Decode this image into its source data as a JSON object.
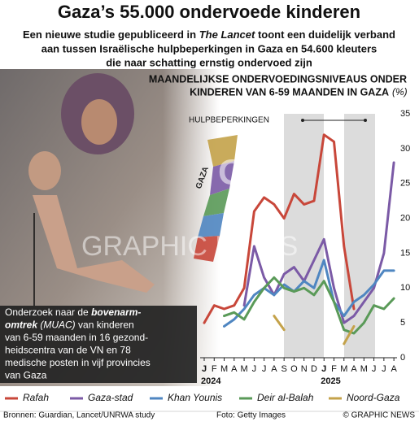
{
  "chart_data": {
    "type": "line",
    "title": "Gaza’s 55.000 ondervoede kinderen",
    "subtitle": {
      "line1": {
        "before": "Een nieuwe studie gepubliceerd in ",
        "italic": "The Lancet",
        "after": " toont een duidelijk verband"
      },
      "line2": "aan tussen Israëlische hulpbeperkingen in Gaza en 54.600 kleuters",
      "line3": "die naar schatting ernstig ondervoed zijn"
    },
    "chart_title": [
      "MAANDELIJKSE ONDERVOEDINGSNIVEAUS ONDER",
      "KINDEREN VAN 6-59 MAANDEN IN GAZA"
    ],
    "y_unit": "(%)",
    "annotation": "HULPBEPERKINGEN",
    "map_label": "GAZA",
    "watermark": [
      "GN",
      "GRAPHIC NEWS"
    ],
    "categories": [
      "J",
      "F",
      "M",
      "A",
      "M",
      "J",
      "J",
      "A",
      "S",
      "O",
      "N",
      "D",
      "J",
      "F",
      "M",
      "A",
      "M",
      "J",
      "J",
      "A"
    ],
    "year_labels": [
      "2024",
      null,
      null,
      null,
      null,
      null,
      null,
      null,
      null,
      null,
      null,
      null,
      "2025",
      null,
      null,
      null,
      null,
      null,
      null,
      null
    ],
    "ylim": [
      0,
      35
    ],
    "yticks": [
      0,
      5,
      10,
      15,
      20,
      25,
      30,
      35
    ],
    "grid": false,
    "series": [
      {
        "name": "Rafah",
        "color": "#c8473a",
        "values": [
          5,
          7.5,
          7,
          7.5,
          10,
          21,
          23,
          22,
          20,
          23.5,
          22,
          22.5,
          32,
          31,
          16,
          7,
          null,
          null,
          null,
          null
        ]
      },
      {
        "name": "Gaza-stad",
        "color": "#7b5aa6",
        "values": [
          null,
          null,
          null,
          null,
          7.5,
          16,
          11.5,
          9,
          12,
          13,
          11,
          14,
          17,
          10,
          5,
          6,
          8,
          10,
          15,
          28
        ]
      },
      {
        "name": "Khan Younis",
        "color": "#4f86c1",
        "values": [
          null,
          null,
          4.5,
          5.5,
          7,
          9,
          10,
          9,
          10.5,
          9.5,
          11,
          10,
          14,
          8,
          6,
          8,
          9,
          10.5,
          12.5,
          12.5
        ]
      },
      {
        "name": "Deir al-Balah",
        "color": "#5a9a58",
        "values": [
          null,
          null,
          6,
          6.5,
          5.5,
          8,
          10,
          11.5,
          10,
          9.5,
          10,
          9,
          11,
          8,
          4,
          3.5,
          5,
          7.5,
          7,
          8.5
        ]
      },
      {
        "name": "Noord-Gaza",
        "color": "#c4a24a",
        "values": [
          null,
          null,
          null,
          null,
          null,
          null,
          null,
          6,
          4,
          null,
          null,
          null,
          null,
          null,
          2,
          4.5,
          null,
          null,
          null,
          null
        ]
      }
    ],
    "box_text": [
      [
        {
          "text": "Onderzoek naar de ",
          "style": "normal"
        },
        {
          "text": "bovenarm-",
          "style": "bold-italic"
        }
      ],
      [
        {
          "text": "omtrek",
          "style": "bold-italic"
        },
        {
          "text": " (MUAC)",
          "style": "italic"
        },
        {
          "text": " van kinderen",
          "style": "normal"
        }
      ],
      [
        {
          "text": "van 6-59 maanden in 16 gezond-",
          "style": "normal"
        }
      ],
      [
        {
          "text": "heidscentra van de VN en 78",
          "style": "normal"
        }
      ],
      [
        {
          "text": "medische posten in vijf provincies",
          "style": "normal"
        }
      ],
      [
        {
          "text": "van Gaza",
          "style": "normal"
        }
      ]
    ],
    "footer": {
      "sources": "Bronnen: Guardian, Lancet/UNRWA study",
      "photo": "Foto: Getty Images",
      "copyright": "© GRAPHIC NEWS"
    }
  }
}
